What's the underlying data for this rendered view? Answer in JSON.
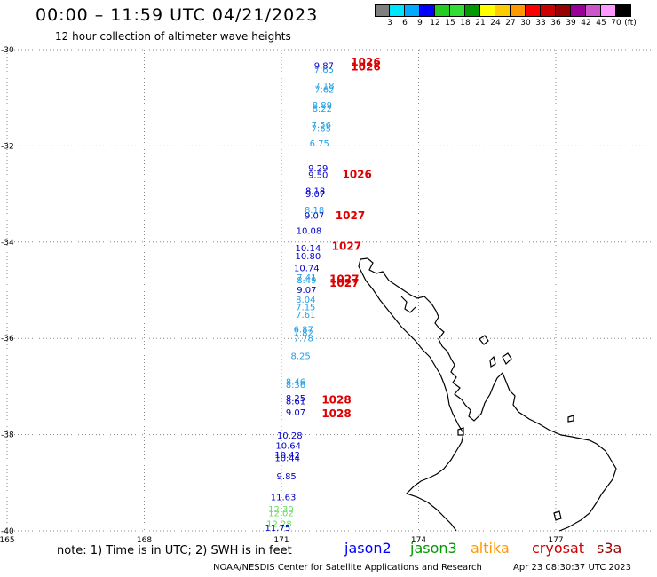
{
  "header": {
    "title": "00:00 – 11:59 UTC 04/21/2023",
    "subtitle": "12 hour collection of altimeter wave heights"
  },
  "colorbar": {
    "unit": "(ft)",
    "steps": [
      {
        "label": "3",
        "color": "#7f7f7f"
      },
      {
        "label": "6",
        "color": "#00e5ff"
      },
      {
        "label": "9",
        "color": "#00aaff"
      },
      {
        "label": "12",
        "color": "#0000ff"
      },
      {
        "label": "15",
        "color": "#22cc22"
      },
      {
        "label": "18",
        "color": "#33dd33"
      },
      {
        "label": "21",
        "color": "#009900"
      },
      {
        "label": "24",
        "color": "#ffff00"
      },
      {
        "label": "27",
        "color": "#ffcc00"
      },
      {
        "label": "30",
        "color": "#ff9900"
      },
      {
        "label": "33",
        "color": "#ff0000"
      },
      {
        "label": "36",
        "color": "#cc0000"
      },
      {
        "label": "39",
        "color": "#990000"
      },
      {
        "label": "42",
        "color": "#990099"
      },
      {
        "label": "45",
        "color": "#cc55cc"
      },
      {
        "label": "70",
        "color": "#ff99ff"
      },
      {
        "label": "",
        "color": "#000000"
      }
    ]
  },
  "map": {
    "lon_ticks": [
      "165",
      "168",
      "171",
      "174",
      "177"
    ],
    "lat_ticks": [
      "-30",
      "-32",
      "-34",
      "-36",
      "-38",
      "-40"
    ],
    "observations": [
      {
        "text": "9.87",
        "lon": 171.93,
        "lat": -30.32,
        "color": "#0000cc"
      },
      {
        "text": "7.65",
        "lon": 171.93,
        "lat": -30.41,
        "color": "#1f9fe6"
      },
      {
        "text": "7.18",
        "lon": 171.94,
        "lat": -30.74,
        "color": "#1f9fe6"
      },
      {
        "text": "7.62",
        "lon": 171.94,
        "lat": -30.82,
        "color": "#1f9fe6"
      },
      {
        "text": "8.89",
        "lon": 171.89,
        "lat": -31.14,
        "color": "#1f9fe6"
      },
      {
        "text": "8.22",
        "lon": 171.89,
        "lat": -31.22,
        "color": "#1f9fe6"
      },
      {
        "text": "7.56",
        "lon": 171.87,
        "lat": -31.55,
        "color": "#1f9fe6"
      },
      {
        "text": "7.65",
        "lon": 171.87,
        "lat": -31.63,
        "color": "#1f9fe6"
      },
      {
        "text": "6.75",
        "lon": 171.83,
        "lat": -31.94,
        "color": "#1f9fe6"
      },
      {
        "text": "9.29",
        "lon": 171.8,
        "lat": -32.45,
        "color": "#0000cc"
      },
      {
        "text": "9.50",
        "lon": 171.8,
        "lat": -32.59,
        "color": "#0000cc"
      },
      {
        "text": "8.18",
        "lon": 171.74,
        "lat": -32.92,
        "color": "#0000cc"
      },
      {
        "text": "9.07",
        "lon": 171.74,
        "lat": -32.99,
        "color": "#0000cc"
      },
      {
        "text": "8.18",
        "lon": 171.72,
        "lat": -33.32,
        "color": "#1f9fe6"
      },
      {
        "text": "9.07",
        "lon": 171.72,
        "lat": -33.44,
        "color": "#0000cc"
      },
      {
        "text": "10.08",
        "lon": 171.6,
        "lat": -33.75,
        "color": "#0000cc"
      },
      {
        "text": "10.14",
        "lon": 171.58,
        "lat": -34.11,
        "color": "#0000cc"
      },
      {
        "text": "10.80",
        "lon": 171.58,
        "lat": -34.28,
        "color": "#0000cc"
      },
      {
        "text": "10.74",
        "lon": 171.55,
        "lat": -34.53,
        "color": "#0000cc"
      },
      {
        "text": "7.41",
        "lon": 171.55,
        "lat": -34.72,
        "color": "#1f9fe6"
      },
      {
        "text": "8.49",
        "lon": 171.55,
        "lat": -34.78,
        "color": "#1f9fe6"
      },
      {
        "text": "9.07",
        "lon": 171.55,
        "lat": -34.98,
        "color": "#0000cc"
      },
      {
        "text": "8.04",
        "lon": 171.53,
        "lat": -35.18,
        "color": "#1f9fe6"
      },
      {
        "text": "7.15",
        "lon": 171.53,
        "lat": -35.34,
        "color": "#1f9fe6"
      },
      {
        "text": "7.61",
        "lon": 171.53,
        "lat": -35.5,
        "color": "#1f9fe6"
      },
      {
        "text": "6.87",
        "lon": 171.48,
        "lat": -35.8,
        "color": "#1f9fe6"
      },
      {
        "text": "7.82",
        "lon": 171.48,
        "lat": -35.88,
        "color": "#1f9fe6"
      },
      {
        "text": "7.78",
        "lon": 171.48,
        "lat": -35.99,
        "color": "#1f9fe6"
      },
      {
        "text": "8.25",
        "lon": 171.42,
        "lat": -36.36,
        "color": "#1f9fe6"
      },
      {
        "text": "8.46",
        "lon": 171.31,
        "lat": -36.89,
        "color": "#1f9fe6"
      },
      {
        "text": "8.36",
        "lon": 171.31,
        "lat": -36.96,
        "color": "#1f9fe6"
      },
      {
        "text": "8.25",
        "lon": 171.31,
        "lat": -37.23,
        "color": "#0000cc"
      },
      {
        "text": "8.61",
        "lon": 171.31,
        "lat": -37.3,
        "color": "#0000cc"
      },
      {
        "text": "9.07",
        "lon": 171.31,
        "lat": -37.53,
        "color": "#0000cc"
      },
      {
        "text": "10.28",
        "lon": 171.18,
        "lat": -38.01,
        "color": "#0000cc"
      },
      {
        "text": "10.64",
        "lon": 171.15,
        "lat": -38.22,
        "color": "#0000cc"
      },
      {
        "text": "10.42",
        "lon": 171.13,
        "lat": -38.41,
        "color": "#0000cc"
      },
      {
        "text": "10.44",
        "lon": 171.13,
        "lat": -38.48,
        "color": "#0000cc"
      },
      {
        "text": "9.85",
        "lon": 171.11,
        "lat": -38.86,
        "color": "#0000cc"
      },
      {
        "text": "11.63",
        "lon": 171.04,
        "lat": -39.29,
        "color": "#0000cc"
      },
      {
        "text": "12.30",
        "lon": 170.99,
        "lat": -39.54,
        "color": "#66dd66"
      },
      {
        "text": "12.02",
        "lon": 170.99,
        "lat": -39.62,
        "color": "#66dd66"
      },
      {
        "text": "12.28",
        "lon": 170.95,
        "lat": -39.84,
        "color": "#66dd66"
      },
      {
        "text": "11.75",
        "lon": 170.92,
        "lat": -39.93,
        "color": "#0000cc"
      }
    ],
    "pressures": [
      {
        "text": "1026",
        "lon": 172.52,
        "lat": -30.24
      },
      {
        "text": "1026",
        "lon": 172.52,
        "lat": -30.34
      },
      {
        "text": "1026",
        "lon": 172.33,
        "lat": -32.57
      },
      {
        "text": "1027",
        "lon": 172.18,
        "lat": -33.43
      },
      {
        "text": "1027",
        "lon": 172.1,
        "lat": -34.07
      },
      {
        "text": "1027",
        "lon": 172.05,
        "lat": -34.75
      },
      {
        "text": "1027",
        "lon": 172.05,
        "lat": -34.83
      },
      {
        "text": "1028",
        "lon": 171.88,
        "lat": -37.26
      },
      {
        "text": "1028",
        "lon": 171.88,
        "lat": -37.55
      }
    ]
  },
  "footer": {
    "note": "note: 1) Time is in UTC; 2) SWH is in feet",
    "credit": "NOAA/NESDIS Center for Satellite Applications and Research",
    "generated": "Apr 23 08:30:37 UTC 2023",
    "legend": [
      {
        "label": "jason2",
        "color": "#0000ff"
      },
      {
        "label": "jason3",
        "color": "#009900"
      },
      {
        "label": "altika",
        "color": "#ff9900"
      },
      {
        "label": "cryosat",
        "color": "#cc0000"
      },
      {
        "label": "s3a",
        "color": "#990000"
      }
    ]
  }
}
